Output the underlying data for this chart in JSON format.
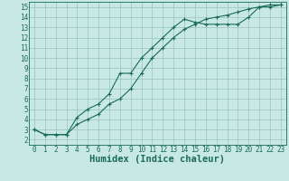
{
  "xlabel": "Humidex (Indice chaleur)",
  "ylabel": "",
  "background_color": "#c8e8e4",
  "grid_color": "#a0c8c4",
  "line_color": "#1a6b5a",
  "spine_color": "#1a6b5a",
  "xlim": [
    -0.5,
    23.5
  ],
  "ylim": [
    1.5,
    15.5
  ],
  "xticks": [
    0,
    1,
    2,
    3,
    4,
    5,
    6,
    7,
    8,
    9,
    10,
    11,
    12,
    13,
    14,
    15,
    16,
    17,
    18,
    19,
    20,
    21,
    22,
    23
  ],
  "yticks": [
    2,
    3,
    4,
    5,
    6,
    7,
    8,
    9,
    10,
    11,
    12,
    13,
    14,
    15
  ],
  "line1_x": [
    0,
    1,
    2,
    3,
    4,
    5,
    6,
    7,
    8,
    9,
    10,
    11,
    12,
    13,
    14,
    15,
    16,
    17,
    18,
    19,
    20,
    21,
    22,
    23
  ],
  "line1_y": [
    3.0,
    2.5,
    2.5,
    2.5,
    4.2,
    5.0,
    5.5,
    6.5,
    8.5,
    8.5,
    10.0,
    11.0,
    12.0,
    13.0,
    13.8,
    13.5,
    13.3,
    13.3,
    13.3,
    13.3,
    14.0,
    15.0,
    15.0,
    15.2
  ],
  "line2_x": [
    0,
    1,
    2,
    3,
    4,
    5,
    6,
    7,
    8,
    9,
    10,
    11,
    12,
    13,
    14,
    15,
    16,
    17,
    18,
    19,
    20,
    21,
    22,
    23
  ],
  "line2_y": [
    3.0,
    2.5,
    2.5,
    2.5,
    3.5,
    4.0,
    4.5,
    5.5,
    6.0,
    7.0,
    8.5,
    10.0,
    11.0,
    12.0,
    12.8,
    13.3,
    13.8,
    14.0,
    14.2,
    14.5,
    14.8,
    15.0,
    15.2,
    15.2
  ],
  "tick_fontsize": 5.5,
  "xlabel_fontsize": 7.5
}
